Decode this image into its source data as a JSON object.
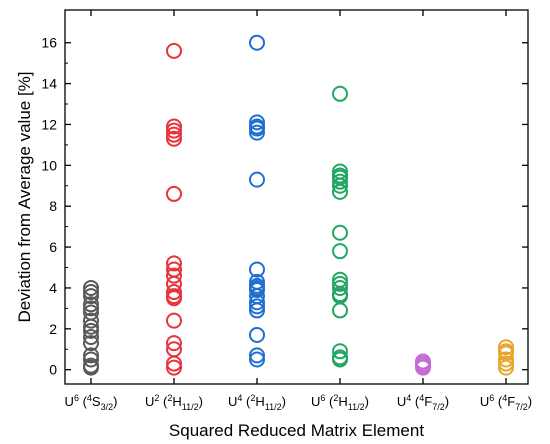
{
  "chart_data": {
    "type": "scatter",
    "title": "",
    "xlabel": "Squared Reduced Matrix Element",
    "ylabel": "Deviation from Average value [%]",
    "ylim": [
      -0.7,
      17.6
    ],
    "yticks": [
      0,
      2,
      4,
      6,
      8,
      10,
      12,
      14,
      16
    ],
    "grid": false,
    "legend": "none",
    "marker": "hollow-circle",
    "categories": [
      {
        "base": "U",
        "sup": "6",
        "open": " (",
        "term_sup": "4",
        "term": "S",
        "term_sub": "3/2",
        "close": ")"
      },
      {
        "base": "U",
        "sup": "2",
        "open": " (",
        "term_sup": "2",
        "term": "H",
        "term_sub": "11/2",
        "close": ")"
      },
      {
        "base": "U",
        "sup": "4",
        "open": " (",
        "term_sup": "2",
        "term": "H",
        "term_sub": "11/2",
        "close": ")"
      },
      {
        "base": "U",
        "sup": "6",
        "open": " (",
        "term_sup": "2",
        "term": "H",
        "term_sub": "11/2",
        "close": ")"
      },
      {
        "base": "U",
        "sup": "4",
        "open": " (",
        "term_sup": "4",
        "term": "F",
        "term_sub": "7/2",
        "close": ")"
      },
      {
        "base": "U",
        "sup": "6",
        "open": " (",
        "term_sup": "4",
        "term": "F",
        "term_sub": "7/2",
        "close": ")"
      }
    ],
    "series": [
      {
        "color": "#595959",
        "values": [
          4.0,
          3.8,
          3.6,
          3.2,
          3.0,
          2.8,
          2.4,
          2.1,
          1.9,
          1.6,
          1.3,
          0.7,
          0.5,
          0.2,
          0.1
        ]
      },
      {
        "color": "#e8333b",
        "values": [
          15.6,
          11.9,
          11.7,
          11.5,
          11.3,
          8.6,
          5.2,
          4.9,
          4.6,
          4.2,
          3.8,
          3.6,
          3.5,
          2.4,
          1.3,
          1.0,
          0.3,
          0.1
        ]
      },
      {
        "color": "#1f6fd1",
        "values": [
          16.0,
          12.1,
          11.9,
          11.8,
          11.6,
          9.3,
          4.9,
          4.3,
          4.1,
          4.0,
          3.9,
          3.6,
          3.3,
          3.1,
          2.9,
          1.7,
          0.7,
          0.5
        ]
      },
      {
        "color": "#22a663",
        "values": [
          13.5,
          9.7,
          9.5,
          9.4,
          9.2,
          9.0,
          8.7,
          6.7,
          5.8,
          4.4,
          4.2,
          4.0,
          3.7,
          3.6,
          2.9,
          0.9,
          0.6,
          0.5
        ]
      },
      {
        "color": "#c56bd6",
        "values": [
          0.4,
          0.3,
          0.2,
          0.1
        ]
      },
      {
        "color": "#e8a52b",
        "values": [
          1.1,
          0.9,
          0.8,
          0.5,
          0.3,
          0.1
        ]
      }
    ]
  }
}
